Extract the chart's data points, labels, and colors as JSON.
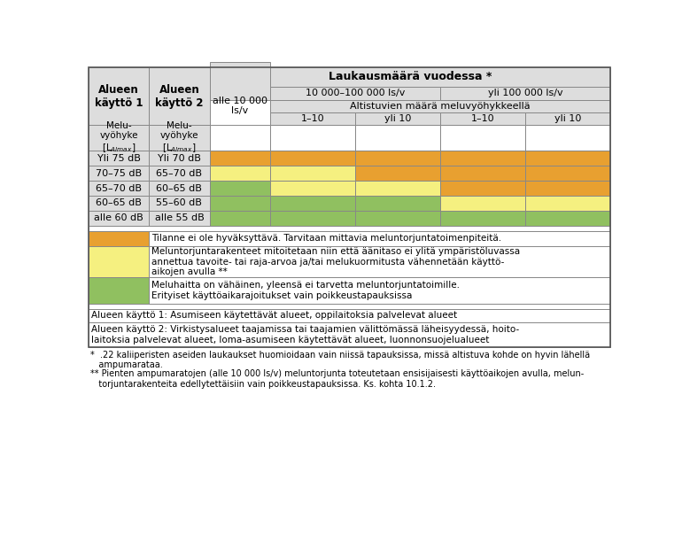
{
  "title": "",
  "col1_header": [
    "Alueen",
    "käyttö 1"
  ],
  "col2_header": [
    "Alueen",
    "käyttö 2"
  ],
  "col3_header": [
    "alle 10 000",
    "ls/v"
  ],
  "col_group1": "10 000–100 000 ls/v",
  "col_group2": "yli 100 000 ls/v",
  "subgroup_label": "Altistuvien määrä meluvyöhykkeellä",
  "subgroup_cols": [
    "1–10",
    "yli 10",
    "1–10",
    "yli 10"
  ],
  "main_header": "Laukausmäärä vuodessa *",
  "row_labels_1": [
    "Melu-\nvyöhyke\n[Lₐₗₘₐₓ]",
    "Yli 75 dB",
    "70–75 dB",
    "65–70 dB",
    "60–65 dB",
    "alle 60 dB"
  ],
  "row_labels_2": [
    "Melu-\nvyöhyke\n[Lₐₗₘₐₓ]",
    "Yli 70 dB",
    "65–70 dB",
    "60–65 dB",
    "55–60 dB",
    "alle 55 dB"
  ],
  "orange": "#E8A030",
  "yellow": "#F5F080",
  "green": "#90C060",
  "white": "#FFFFFF",
  "cell_colors": [
    [
      "orange",
      "orange",
      "orange",
      "orange",
      "orange"
    ],
    [
      "yellow",
      "yellow",
      "orange",
      "orange",
      "orange"
    ],
    [
      "green",
      "yellow",
      "yellow",
      "orange",
      "orange"
    ],
    [
      "green",
      "green",
      "green",
      "yellow",
      "yellow"
    ],
    [
      "green",
      "green",
      "green",
      "green",
      "green"
    ]
  ],
  "legend_colors": [
    "orange",
    "yellow",
    "green"
  ],
  "legend_texts": [
    "Tilanne ei ole hyväksyttävä. Tarvitaan mittavia meluntorjuntatoimenpiteitä.",
    "Meluntorjuntarakenteet mitoitetaan niin että äänitaso ei ylitä ympäristöluvassa\nannettua tavoite- tai raja-arvoa ja/tai melukuormitusta vähennetään käyttö-\naikojen avulla **",
    "Meluhaitta on vähäinen, yleensä ei tarvetta meluntorjuntatoimille.\nErityiset käyttöaikarajoitukset vain poikkeustapauksissa"
  ],
  "footer_rows": [
    "Alueen käyttö 1: Asumiseen käytettävät alueet, oppilaitoksia palvelevat alueet",
    "Alueen käyttö 2: Virkistysalueet taajamissa tai taajamien välittömässä läheisyydessä, hoito-\nlaitoksia palvelevat alueet, loma-asumiseen käytettävät alueet, luonnonsuojelualueet"
  ],
  "footnotes": [
    "*  .22 kaliiperisten aseiden laukaukset huomioidaan vain niissä tapauksissa, missä altistuva kohde on hyvin lähellä\n   ampumarataa.",
    "** Pienten ampumaratojen (alle 10 000 ls/v) meluntorjunta toteutetaan ensisijaisesti käyttöaikojen avulla, melun-\n   torjuntarakenteita edellytettäisiin vain poikkeustapauksissa. Ks. kohta 10.1.2."
  ],
  "border_color": "#888888",
  "bg_color": "#FFFFFF",
  "header_bg": "#DDDDDD"
}
